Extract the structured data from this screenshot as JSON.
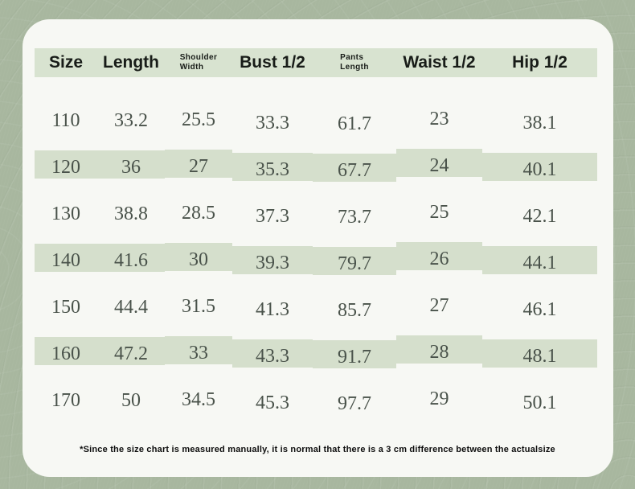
{
  "chart_data": {
    "type": "table",
    "columns": [
      {
        "label": "Size",
        "lines": [
          "Size"
        ],
        "small": false
      },
      {
        "label": "Length",
        "lines": [
          "Length"
        ],
        "small": false
      },
      {
        "label": "Shoulder Width",
        "lines": [
          "Shoulder",
          "Width"
        ],
        "small": true
      },
      {
        "label": "Bust 1/2",
        "lines": [
          "Bust 1/2"
        ],
        "small": false
      },
      {
        "label": "Pants Length",
        "lines": [
          "Pants",
          "Length"
        ],
        "small": true
      },
      {
        "label": "Waist 1/2",
        "lines": [
          "Waist 1/2"
        ],
        "small": false
      },
      {
        "label": "Hip 1/2",
        "lines": [
          "Hip 1/2"
        ],
        "small": false
      }
    ],
    "rows": [
      [
        "110",
        "33.2",
        "25.5",
        "33.3",
        "61.7",
        "23",
        "38.1"
      ],
      [
        "120",
        "36",
        "27",
        "35.3",
        "67.7",
        "24",
        "40.1"
      ],
      [
        "130",
        "38.8",
        "28.5",
        "37.3",
        "73.7",
        "25",
        "42.1"
      ],
      [
        "140",
        "41.6",
        "30",
        "39.3",
        "79.7",
        "26",
        "44.1"
      ],
      [
        "150",
        "44.4",
        "31.5",
        "41.3",
        "85.7",
        "27",
        "46.1"
      ],
      [
        "160",
        "47.2",
        "33",
        "43.3",
        "91.7",
        "28",
        "48.1"
      ],
      [
        "170",
        "50",
        "34.5",
        "45.3",
        "97.7",
        "29",
        "50.1"
      ]
    ],
    "striped_row_labels": [
      "120",
      "140",
      "160"
    ],
    "layout": {
      "legend": "none",
      "grid": "row-stripes",
      "header_band": true
    }
  },
  "footnote": {
    "text": "*Since the size chart is measured manually, it is normal that there is a 3 cm difference between the actualsize"
  },
  "colors": {
    "page_background": "#a8b79f",
    "card_background": "#f7f8f4",
    "header_band": "#d8e3d0",
    "row_stripe": "#d5dfcc",
    "header_text": "#181c18",
    "data_text": "#49524a",
    "footnote_text": "#0d0d0d"
  }
}
